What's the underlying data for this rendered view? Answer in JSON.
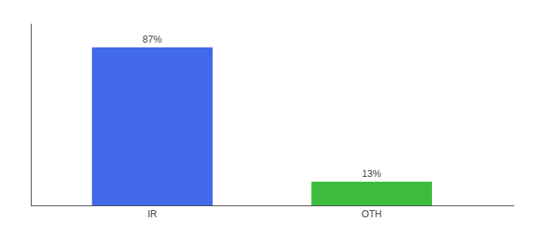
{
  "chart_data": {
    "type": "bar",
    "categories": [
      "IR",
      "OTH"
    ],
    "values": [
      87,
      13
    ],
    "value_labels": [
      "87%",
      "13%"
    ],
    "colors": [
      "#4169e8",
      "#3dbb3d"
    ],
    "ylim": [
      0,
      100
    ],
    "data_labels": true,
    "tick_labels": "x",
    "grid": false
  }
}
